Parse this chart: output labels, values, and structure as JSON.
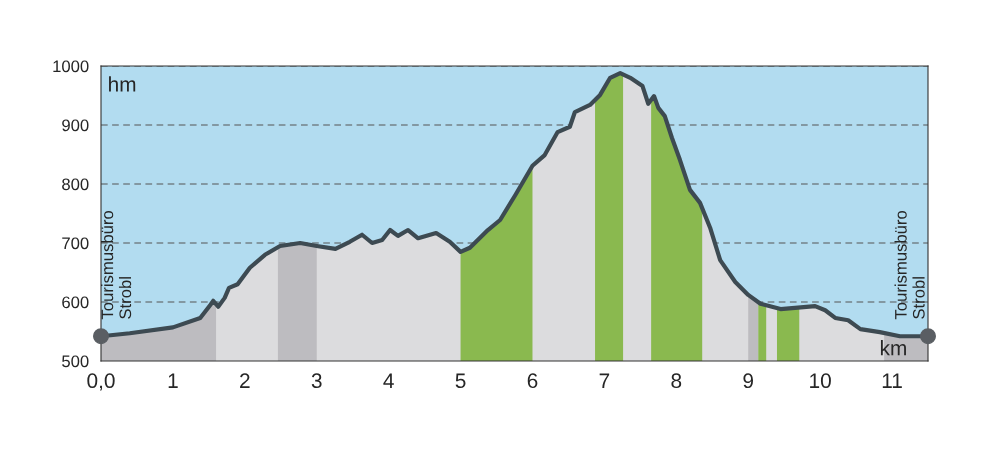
{
  "chart_data": {
    "type": "area",
    "xlabel": "km",
    "ylabel": "hm",
    "xlim": [
      0,
      11.5
    ],
    "ylim": [
      500,
      1000
    ],
    "xticks": [
      {
        "value": 0,
        "label": "0,0"
      },
      1,
      2,
      3,
      4,
      5,
      6,
      7,
      8,
      9,
      10,
      11
    ],
    "yticks": [
      500,
      600,
      700,
      800,
      900,
      1000
    ],
    "grid": "y",
    "series": [
      {
        "type": "line",
        "color": "#3d4a52",
        "x": [
          0,
          0.4,
          1.0,
          1.38,
          1.52,
          1.56,
          1.63,
          1.72,
          1.78,
          1.9,
          2.07,
          2.28,
          2.49,
          2.77,
          3.0,
          3.26,
          3.46,
          3.63,
          3.77,
          3.91,
          4.02,
          4.13,
          4.27,
          4.41,
          4.66,
          4.85,
          5.0,
          5.13,
          5.38,
          5.55,
          5.76,
          6.0,
          6.17,
          6.35,
          6.52,
          6.59,
          6.8,
          6.94,
          7.08,
          7.22,
          7.36,
          7.53,
          7.61,
          7.69,
          7.75,
          7.84,
          7.94,
          8.05,
          8.19,
          8.33,
          8.47,
          8.61,
          8.82,
          9.0,
          9.17,
          9.45,
          9.65,
          9.93,
          10.07,
          10.21,
          10.39,
          10.56,
          10.83,
          11.11,
          11.5
        ],
        "values": [
          542,
          547,
          557,
          573,
          595,
          602,
          592,
          607,
          624,
          630,
          658,
          680,
          695,
          700,
          695,
          690,
          702,
          714,
          700,
          705,
          722,
          712,
          722,
          708,
          717,
          702,
          685,
          692,
          722,
          739,
          781,
          831,
          849,
          888,
          897,
          922,
          934,
          951,
          980,
          988,
          980,
          966,
          936,
          949,
          929,
          915,
          878,
          841,
          790,
          768,
          726,
          671,
          634,
          612,
          597,
          588,
          590,
          593,
          586,
          573,
          569,
          554,
          549,
          542,
          542
        ]
      },
      {
        "type": "scatter",
        "color": "#5a5e63",
        "marker": "circle",
        "x": [
          0,
          11.5
        ],
        "values": [
          542,
          542
        ]
      }
    ],
    "bands": [
      {
        "axis": "x",
        "from": 0,
        "to": 11.5,
        "color": "#dcdcde"
      },
      {
        "axis": "x",
        "from": 0,
        "to": 1.6,
        "color": "#bdbcc0"
      },
      {
        "axis": "x",
        "from": 2.46,
        "to": 3.0,
        "color": "#bdbcc0"
      },
      {
        "axis": "x",
        "from": 5.0,
        "to": 6.0,
        "color": "#8ab94f"
      },
      {
        "axis": "x",
        "from": 6.87,
        "to": 7.26,
        "color": "#8ab94f"
      },
      {
        "axis": "x",
        "from": 7.65,
        "to": 8.36,
        "color": "#8ab94f"
      },
      {
        "axis": "x",
        "from": 9.0,
        "to": 9.14,
        "color": "#bdbcc0"
      },
      {
        "axis": "x",
        "from": 9.14,
        "to": 9.25,
        "color": "#8ab94f"
      },
      {
        "axis": "x",
        "from": 9.4,
        "to": 9.71,
        "color": "#8ab94f"
      },
      {
        "axis": "x",
        "from": 10.89,
        "to": 11.5,
        "color": "#bdbcc0"
      }
    ],
    "annotations": [
      {
        "text": "Tourismusbüro\nStrobl",
        "x": 0,
        "y": 542
      },
      {
        "text": "Tourismusbüro\nStrobl",
        "x": 11.5,
        "y": 542
      }
    ]
  }
}
